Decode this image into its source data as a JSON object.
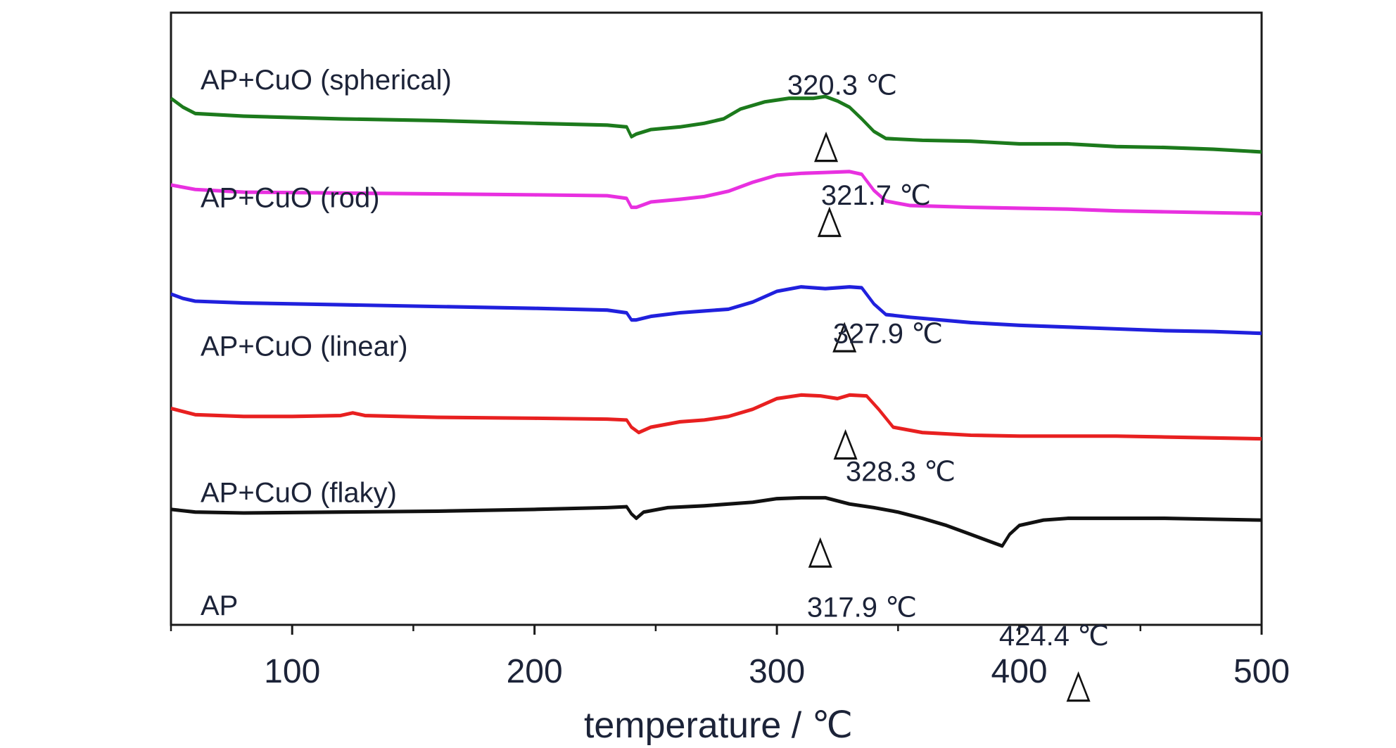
{
  "chart_data": {
    "type": "line",
    "title": "",
    "xlabel": "temperature / ℃",
    "ylabel": "",
    "xlim": [
      50,
      500
    ],
    "xticks": [
      100,
      200,
      300,
      400,
      500
    ],
    "minor_xticks": [
      50,
      150,
      250,
      350,
      450
    ],
    "grid": false,
    "series": [
      {
        "name": "AP+CuO (spherical)",
        "color": "#1c7a1c",
        "points": [
          [
            50,
            110
          ],
          [
            55,
            120
          ],
          [
            60,
            127
          ],
          [
            80,
            130
          ],
          [
            120,
            133
          ],
          [
            160,
            135
          ],
          [
            200,
            138
          ],
          [
            230,
            140
          ],
          [
            238,
            142
          ],
          [
            240,
            153
          ],
          [
            242,
            150
          ],
          [
            248,
            145
          ],
          [
            260,
            142
          ],
          [
            270,
            138
          ],
          [
            278,
            133
          ],
          [
            285,
            122
          ],
          [
            295,
            114
          ],
          [
            305,
            110
          ],
          [
            315,
            110
          ],
          [
            320,
            108
          ],
          [
            325,
            113
          ],
          [
            330,
            120
          ],
          [
            335,
            133
          ],
          [
            340,
            147
          ],
          [
            345,
            155
          ],
          [
            360,
            157
          ],
          [
            380,
            158
          ],
          [
            400,
            161
          ],
          [
            420,
            161
          ],
          [
            440,
            164
          ],
          [
            460,
            165
          ],
          [
            480,
            167
          ],
          [
            500,
            170
          ]
        ],
        "peak_label": "320.3 ℃",
        "peak_x": 320.3,
        "marker_y": 128
      },
      {
        "name": "AP+CuO (rod)",
        "color": "#e830e0",
        "points": [
          [
            50,
            207
          ],
          [
            60,
            212
          ],
          [
            80,
            215
          ],
          [
            120,
            216
          ],
          [
            160,
            217
          ],
          [
            200,
            218
          ],
          [
            230,
            219
          ],
          [
            238,
            222
          ],
          [
            240,
            232
          ],
          [
            242,
            232
          ],
          [
            248,
            226
          ],
          [
            260,
            223
          ],
          [
            270,
            220
          ],
          [
            280,
            214
          ],
          [
            290,
            204
          ],
          [
            300,
            196
          ],
          [
            310,
            194
          ],
          [
            320,
            193
          ],
          [
            330,
            192
          ],
          [
            335,
            195
          ],
          [
            340,
            213
          ],
          [
            345,
            225
          ],
          [
            355,
            230
          ],
          [
            380,
            232
          ],
          [
            400,
            233
          ],
          [
            420,
            234
          ],
          [
            440,
            236
          ],
          [
            460,
            237
          ],
          [
            480,
            238
          ],
          [
            500,
            239
          ]
        ],
        "peak_label": "321.7 ℃",
        "peak_x": 321.7,
        "marker_y": 212
      },
      {
        "name": "AP+CuO (linear)",
        "color": "#2020dd",
        "points": [
          [
            50,
            329
          ],
          [
            55,
            334
          ],
          [
            60,
            337
          ],
          [
            80,
            339
          ],
          [
            120,
            341
          ],
          [
            160,
            343
          ],
          [
            200,
            345
          ],
          [
            230,
            347
          ],
          [
            238,
            350
          ],
          [
            240,
            358
          ],
          [
            242,
            358
          ],
          [
            248,
            354
          ],
          [
            260,
            350
          ],
          [
            270,
            348
          ],
          [
            280,
            346
          ],
          [
            290,
            338
          ],
          [
            300,
            326
          ],
          [
            310,
            321
          ],
          [
            320,
            323
          ],
          [
            330,
            321
          ],
          [
            335,
            322
          ],
          [
            340,
            340
          ],
          [
            345,
            352
          ],
          [
            355,
            355
          ],
          [
            380,
            361
          ],
          [
            400,
            364
          ],
          [
            420,
            366
          ],
          [
            440,
            368
          ],
          [
            460,
            370
          ],
          [
            480,
            371
          ],
          [
            500,
            373
          ]
        ],
        "peak_label": "327.9 ℃",
        "peak_x": 327.9,
        "marker_y": 341
      },
      {
        "name": "AP+CuO (flaky)",
        "color": "#e82020",
        "points": [
          [
            50,
            457
          ],
          [
            60,
            464
          ],
          [
            80,
            466
          ],
          [
            100,
            466
          ],
          [
            120,
            465
          ],
          [
            125,
            462
          ],
          [
            130,
            465
          ],
          [
            160,
            467
          ],
          [
            200,
            468
          ],
          [
            230,
            469
          ],
          [
            238,
            470
          ],
          [
            240,
            478
          ],
          [
            243,
            484
          ],
          [
            248,
            478
          ],
          [
            260,
            472
          ],
          [
            270,
            470
          ],
          [
            280,
            466
          ],
          [
            290,
            458
          ],
          [
            300,
            446
          ],
          [
            310,
            442
          ],
          [
            318,
            443
          ],
          [
            325,
            446
          ],
          [
            330,
            442
          ],
          [
            337,
            443
          ],
          [
            342,
            458
          ],
          [
            348,
            478
          ],
          [
            360,
            484
          ],
          [
            380,
            487
          ],
          [
            400,
            488
          ],
          [
            420,
            488
          ],
          [
            440,
            488
          ],
          [
            460,
            489
          ],
          [
            480,
            490
          ],
          [
            500,
            491
          ]
        ],
        "peak_label": "328.3 ℃",
        "peak_x": 328.3,
        "marker_y": 461
      },
      {
        "name": "AP",
        "color": "#111111",
        "points": [
          [
            50,
            570
          ],
          [
            60,
            573
          ],
          [
            80,
            574
          ],
          [
            120,
            573
          ],
          [
            160,
            572
          ],
          [
            200,
            570
          ],
          [
            230,
            568
          ],
          [
            238,
            567
          ],
          [
            240,
            575
          ],
          [
            242,
            580
          ],
          [
            245,
            573
          ],
          [
            255,
            568
          ],
          [
            270,
            566
          ],
          [
            290,
            562
          ],
          [
            300,
            558
          ],
          [
            310,
            557
          ],
          [
            320,
            557
          ],
          [
            330,
            564
          ],
          [
            340,
            568
          ],
          [
            350,
            573
          ],
          [
            360,
            580
          ],
          [
            370,
            588
          ],
          [
            380,
            598
          ],
          [
            390,
            608
          ],
          [
            393,
            611
          ],
          [
            396,
            598
          ],
          [
            400,
            588
          ],
          [
            410,
            582
          ],
          [
            420,
            580
          ],
          [
            440,
            580
          ],
          [
            460,
            580
          ],
          [
            480,
            581
          ],
          [
            500,
            582
          ]
        ],
        "peak_label": "317.9 ℃",
        "peak_x": 317.9,
        "marker_y": 582,
        "second_peak_label": "424.4 ℃",
        "second_peak_x": 424.4,
        "second_marker_y": 603
      }
    ]
  }
}
